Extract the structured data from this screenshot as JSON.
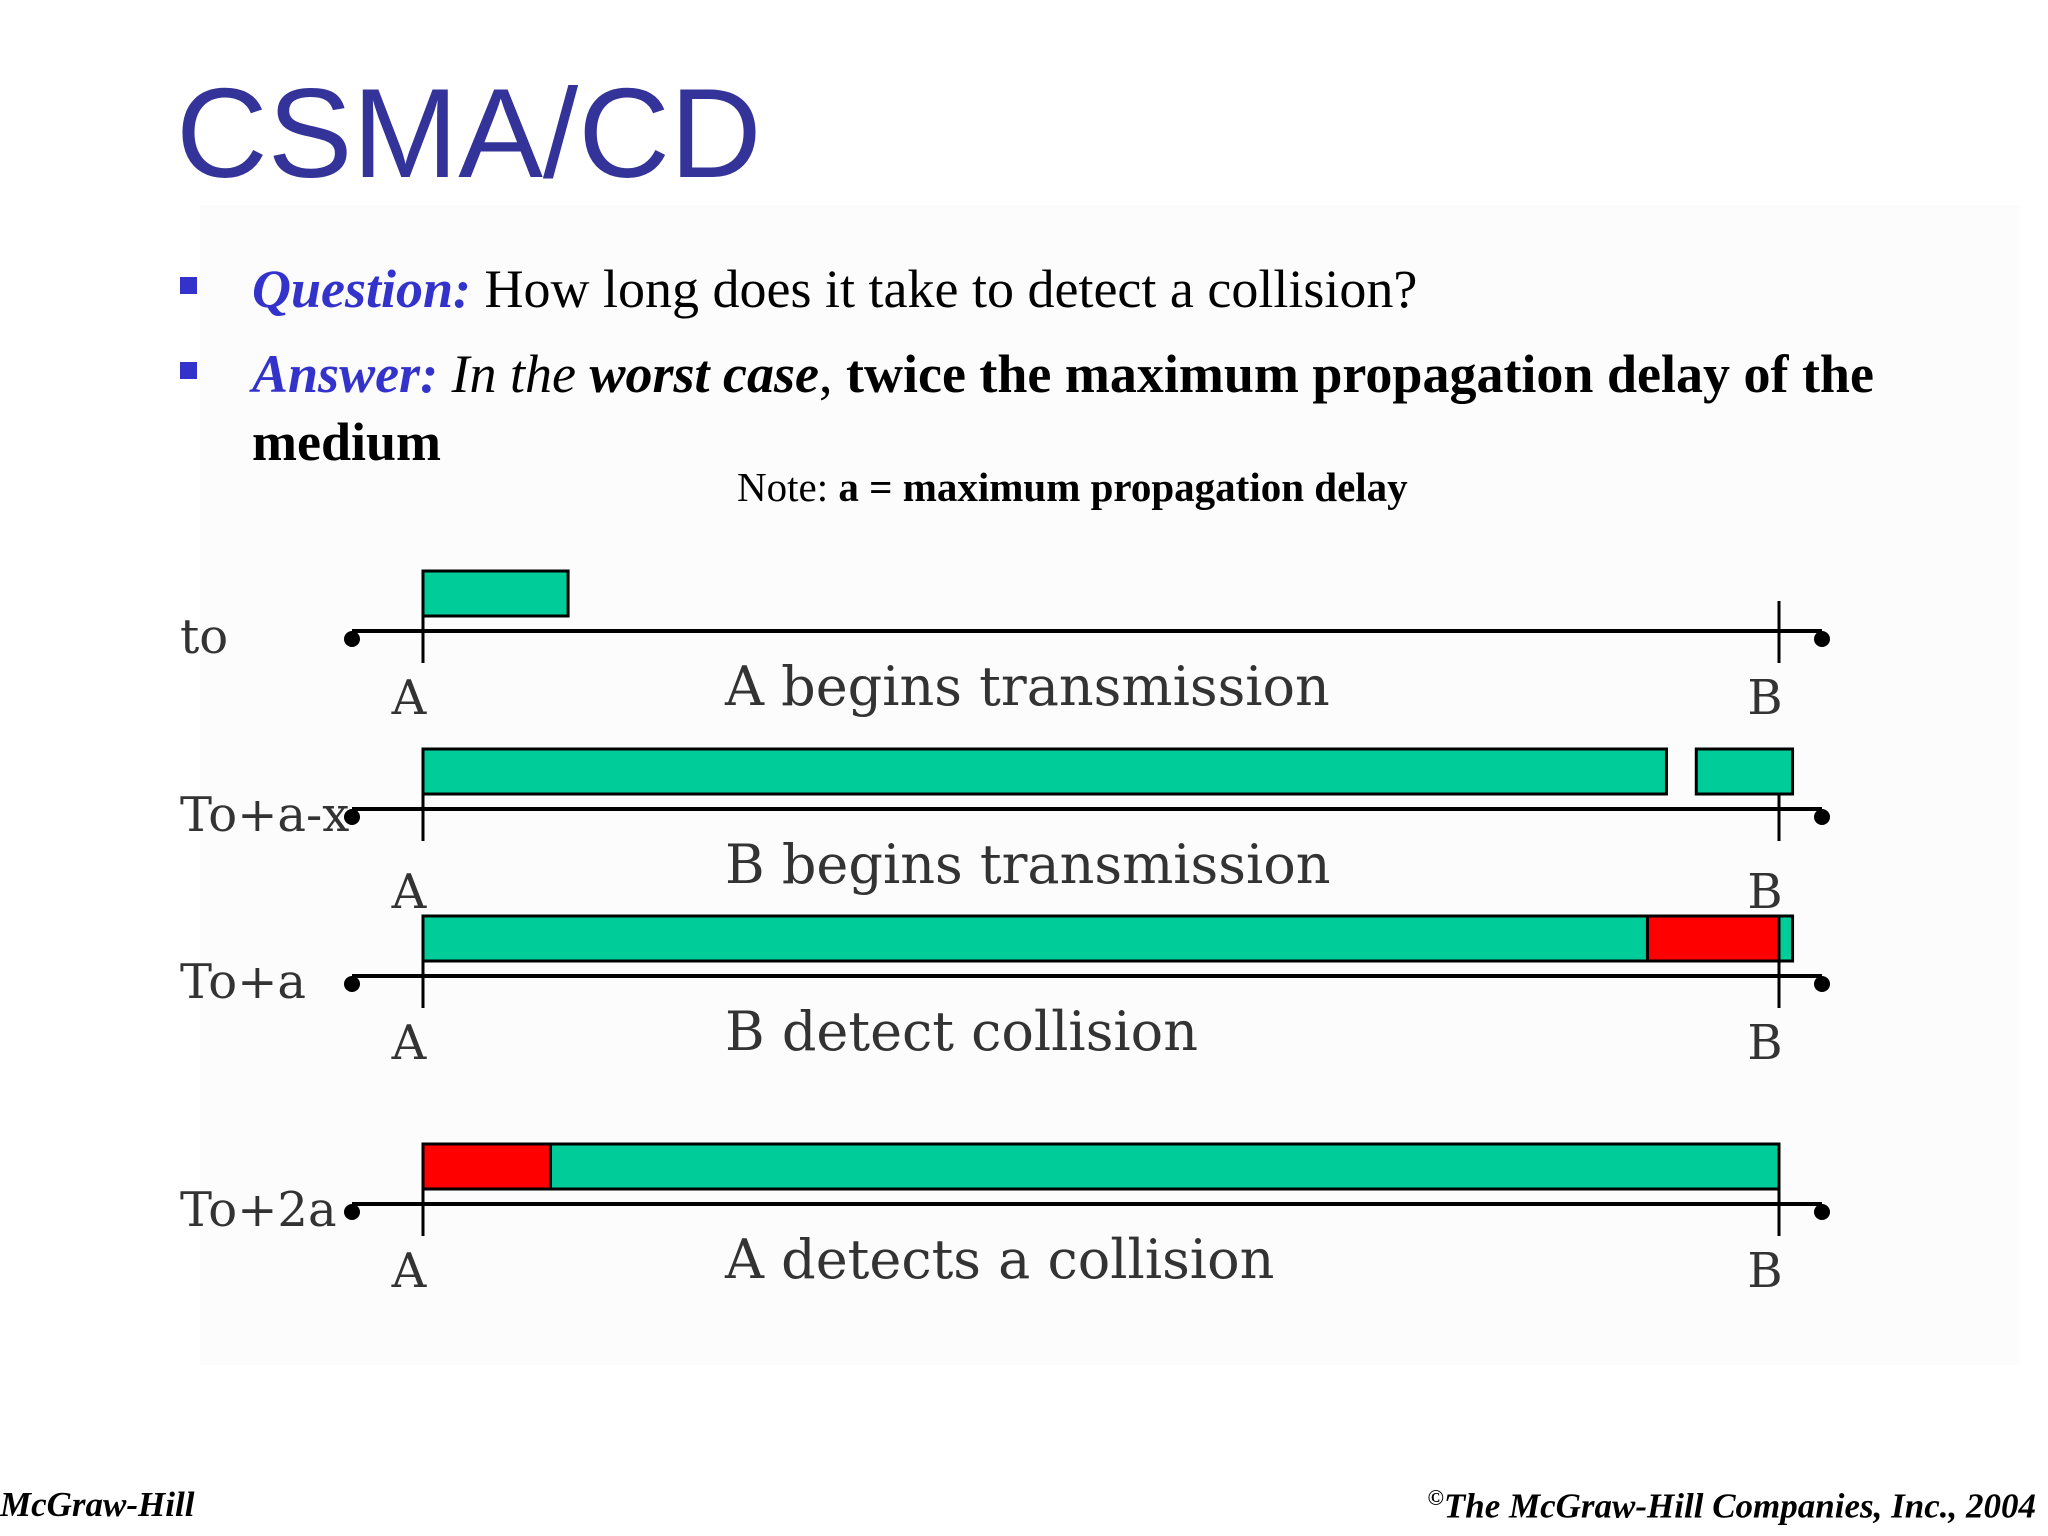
{
  "slide": {
    "title": "CSMA/CD",
    "bullets": [
      {
        "lead": "Question:",
        "text": " How long does it take to detect a collision?"
      },
      {
        "lead": "Answer:",
        "parts": [
          {
            "text": " In the ",
            "style": "italic"
          },
          {
            "text": "worst case",
            "style": "bold-italic"
          },
          {
            "text": ", ",
            "style": "normal"
          },
          {
            "text": "twice the maximum propagation delay of the medium",
            "style": "bold"
          }
        ]
      }
    ],
    "note": {
      "prefix": "Note: ",
      "text": "a = maximum propagation delay"
    }
  },
  "diagram": {
    "colors": {
      "frame": "#00cc99",
      "collision": "#ff0000",
      "line": "#000000"
    },
    "rows": [
      {
        "time": "to",
        "left_station": "A",
        "right_station": "B",
        "caption": "A begins transmission",
        "frames": [
          {
            "from": 0.0,
            "to": 0.107,
            "color": "frame"
          }
        ]
      },
      {
        "time": "To+a-x",
        "left_station": "",
        "right_station": "",
        "caption": "B begins transmission",
        "frames": [
          {
            "from": 0.0,
            "to": 0.917,
            "color": "frame"
          },
          {
            "from": 0.939,
            "to": 1.01,
            "color": "frame"
          }
        ]
      },
      {
        "time": "To+a",
        "left_station": "A",
        "right_station": "B",
        "top_left_station": "A",
        "top_right_station": "B",
        "caption": "B detect collision",
        "frames": [
          {
            "from": 0.0,
            "to": 0.903,
            "color": "frame"
          },
          {
            "from": 0.903,
            "to": 1.0,
            "color": "collision"
          },
          {
            "from": 1.0,
            "to": 1.01,
            "color": "frame"
          }
        ]
      },
      {
        "time": "To+2a",
        "left_station": "A",
        "right_station": "B",
        "caption": "A detects a collision",
        "frames": [
          {
            "from": 0.0,
            "to": 0.094,
            "color": "collision"
          },
          {
            "from": 0.094,
            "to": 1.0,
            "color": "frame"
          }
        ]
      }
    ]
  },
  "footer": {
    "left": "McGraw-Hill",
    "right_symbol": "©",
    "right": "The McGraw-Hill Companies, Inc., 2004"
  }
}
